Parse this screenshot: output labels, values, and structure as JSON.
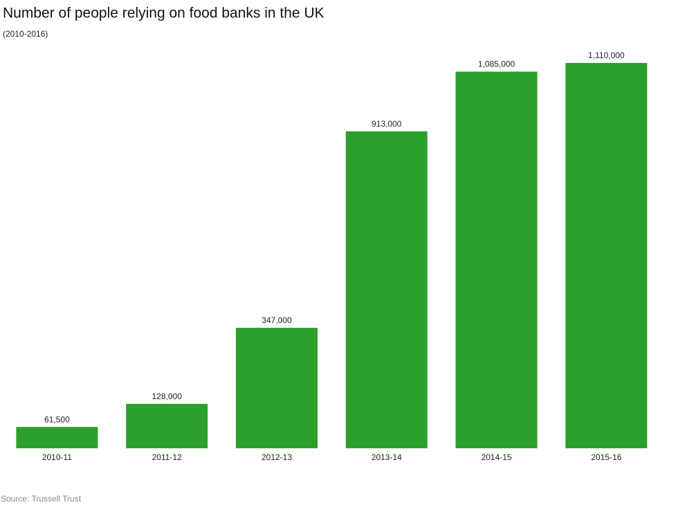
{
  "chart_data": {
    "type": "bar",
    "title": "Number of people relying on food banks in the UK",
    "subtitle": "(2010-2016)",
    "categories": [
      "2010-11",
      "2011-12",
      "2012-13",
      "2013-14",
      "2014-15",
      "2015-16"
    ],
    "values": [
      61500,
      128000,
      347000,
      913000,
      1085000,
      1110000
    ],
    "value_labels": [
      "61,500",
      "128,000",
      "347,000",
      "913,000",
      "1,085,000",
      "1,110,000"
    ],
    "color": "#2ca02c",
    "source": "Source: Trussell Trust"
  }
}
